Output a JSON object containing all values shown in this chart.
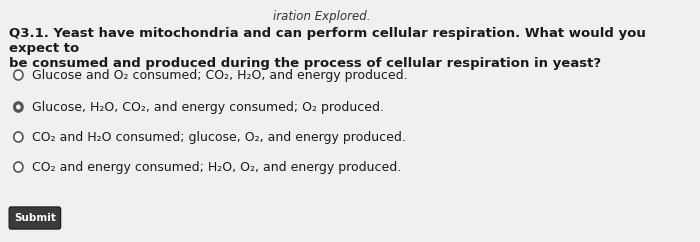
{
  "background_color": "#f0f0f0",
  "header_text": "iration Explored.",
  "question": "Q3.1. Yeast have mitochondria and can perform cellular respiration. What would you expect to\nbe consumed and produced during the process of cellular respiration in yeast?",
  "options": [
    "Glucose and O₂ consumed; CO₂, H₂O, and energy produced.",
    "Glucose, H₂O, CO₂, and energy consumed; O₂ produced.",
    "CO₂ and H₂O consumed; glucose, O₂, and energy produced.",
    "CO₂ and energy consumed; H₂O, O₂, and energy produced."
  ],
  "selected_option": 0,
  "filled_option": 1,
  "button_text": "Submit",
  "text_color": "#1a1a1a",
  "question_fontsize": 9.5,
  "option_fontsize": 9.0,
  "header_color": "#333333"
}
